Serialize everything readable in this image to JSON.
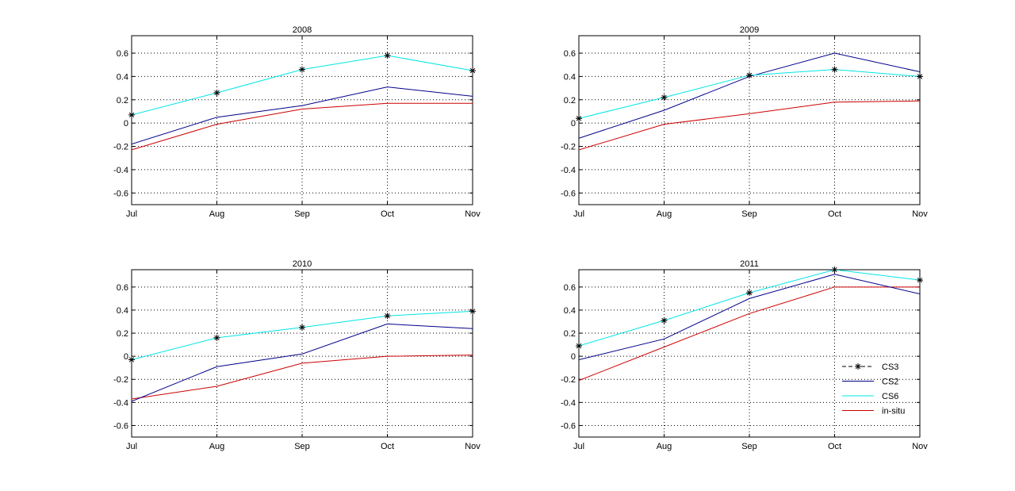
{
  "chart_data": [
    {
      "type": "line",
      "title": "2008",
      "categories": [
        "Jul",
        "Aug",
        "Sep",
        "Oct",
        "Nov"
      ],
      "ylim": [
        -0.7,
        0.75
      ],
      "yticks": [
        0.6,
        0.4,
        0.2,
        0,
        -0.2,
        -0.4,
        -0.6
      ],
      "ytick_labels": [
        "0.6",
        "0.4",
        "0.2",
        "0",
        "-0.2",
        "-0.4",
        "-0.6"
      ],
      "grid": true,
      "series": [
        {
          "name": "CS3",
          "color": "#000000",
          "values": [
            0.07,
            0.26,
            0.46,
            0.58,
            0.45
          ],
          "markers_only": true
        },
        {
          "name": "CS2",
          "color": "#00008b",
          "values": [
            -0.18,
            0.05,
            0.15,
            0.31,
            0.23
          ]
        },
        {
          "name": "CS6",
          "color": "#00e5e5",
          "values": [
            0.07,
            0.26,
            0.46,
            0.58,
            0.45
          ]
        },
        {
          "name": "in-situ",
          "color": "#cc0000",
          "values": [
            -0.23,
            -0.01,
            0.12,
            0.17,
            0.17
          ]
        }
      ]
    },
    {
      "type": "line",
      "title": "2009",
      "categories": [
        "Jul",
        "Aug",
        "Sep",
        "Oct",
        "Nov"
      ],
      "ylim": [
        -0.7,
        0.75
      ],
      "yticks": [
        0.6,
        0.4,
        0.2,
        0,
        -0.2,
        -0.4,
        -0.6
      ],
      "ytick_labels": [
        "0.6",
        "0.4",
        "0.2",
        "0",
        "-0.2",
        "-0.4",
        "-0.6"
      ],
      "grid": true,
      "series": [
        {
          "name": "CS3",
          "color": "#000000",
          "values": [
            0.04,
            0.22,
            0.41,
            0.46,
            0.4
          ],
          "markers_only": true
        },
        {
          "name": "CS2",
          "color": "#00008b",
          "values": [
            -0.13,
            0.11,
            0.4,
            0.6,
            0.44
          ]
        },
        {
          "name": "CS6",
          "color": "#00e5e5",
          "values": [
            0.04,
            0.22,
            0.41,
            0.46,
            0.4
          ]
        },
        {
          "name": "in-situ",
          "color": "#cc0000",
          "values": [
            -0.23,
            -0.01,
            0.08,
            0.18,
            0.19
          ]
        }
      ]
    },
    {
      "type": "line",
      "title": "2010",
      "categories": [
        "Jul",
        "Aug",
        "Sep",
        "Oct",
        "Nov"
      ],
      "ylim": [
        -0.7,
        0.75
      ],
      "yticks": [
        0.6,
        0.4,
        0.2,
        0,
        -0.2,
        -0.4,
        -0.6
      ],
      "ytick_labels": [
        "0.6",
        "0.4",
        "0.2",
        "0",
        "-0.2",
        "-0.4",
        "-0.6"
      ],
      "grid": true,
      "series": [
        {
          "name": "CS3",
          "color": "#000000",
          "values": [
            -0.03,
            0.16,
            0.25,
            0.35,
            0.39
          ],
          "markers_only": true
        },
        {
          "name": "CS2",
          "color": "#00008b",
          "values": [
            -0.39,
            -0.09,
            0.02,
            0.28,
            0.24
          ]
        },
        {
          "name": "CS6",
          "color": "#00e5e5",
          "values": [
            -0.03,
            0.16,
            0.25,
            0.35,
            0.39
          ]
        },
        {
          "name": "in-situ",
          "color": "#cc0000",
          "values": [
            -0.37,
            -0.26,
            -0.06,
            0.0,
            0.01
          ]
        }
      ]
    },
    {
      "type": "line",
      "title": "2011",
      "categories": [
        "Jul",
        "Aug",
        "Sep",
        "Oct",
        "Nov"
      ],
      "ylim": [
        -0.7,
        0.75
      ],
      "yticks": [
        0.6,
        0.4,
        0.2,
        0,
        -0.2,
        -0.4,
        -0.6
      ],
      "ytick_labels": [
        "0.6",
        "0.4",
        "0.2",
        "0",
        "-0.2",
        "-0.4",
        "-0.6"
      ],
      "grid": true,
      "legend": {
        "placement": "bottom-right",
        "entries": [
          {
            "name": "CS3",
            "color": "#000000",
            "style": "dashed-star"
          },
          {
            "name": "CS2",
            "color": "#00008b",
            "style": "solid"
          },
          {
            "name": "CS6",
            "color": "#00e5e5",
            "style": "solid"
          },
          {
            "name": "in-situ",
            "color": "#cc0000",
            "style": "solid"
          }
        ]
      },
      "series": [
        {
          "name": "CS3",
          "color": "#000000",
          "values": [
            0.09,
            0.31,
            0.55,
            0.75,
            0.66
          ],
          "markers_only": true
        },
        {
          "name": "CS2",
          "color": "#00008b",
          "values": [
            -0.03,
            0.15,
            0.5,
            0.71,
            0.54
          ]
        },
        {
          "name": "CS6",
          "color": "#00e5e5",
          "values": [
            0.09,
            0.31,
            0.55,
            0.75,
            0.66
          ]
        },
        {
          "name": "in-situ",
          "color": "#cc0000",
          "values": [
            -0.21,
            0.08,
            0.37,
            0.6,
            0.6
          ]
        }
      ]
    }
  ]
}
